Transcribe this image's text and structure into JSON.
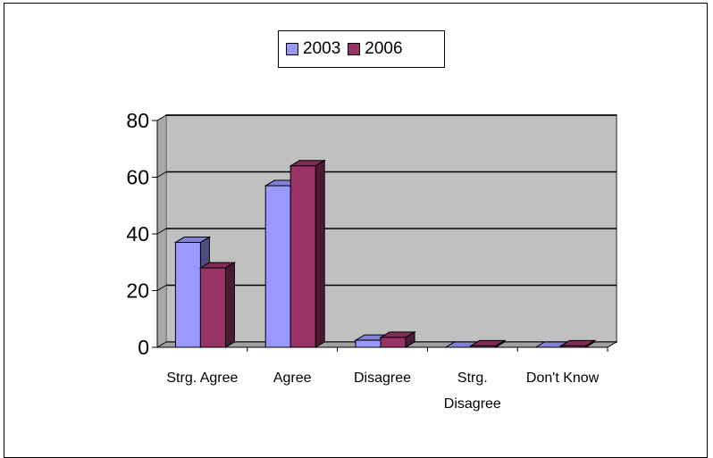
{
  "chart_data": {
    "type": "bar",
    "categories": [
      "Strg. Agree",
      "Agree",
      "Disagree",
      "Strg. Disagree",
      "Don't Know"
    ],
    "category_lines": [
      [
        "Strg. Agree"
      ],
      [
        "Agree"
      ],
      [
        "Disagree"
      ],
      [
        "Strg.",
        "Disagree"
      ],
      [
        "Don't Know"
      ]
    ],
    "series": [
      {
        "name": "2003",
        "values": [
          37,
          57,
          2.5,
          0,
          0
        ],
        "color": "#9999ff"
      },
      {
        "name": "2006",
        "values": [
          28,
          64,
          3.5,
          0.5,
          0.5
        ],
        "color": "#993366"
      }
    ],
    "ylim": [
      0,
      80
    ],
    "yticks": [
      "0",
      "20",
      "40",
      "60",
      "80"
    ],
    "grid": true,
    "legend": "top",
    "plot_bg": "#c0c0c0"
  }
}
